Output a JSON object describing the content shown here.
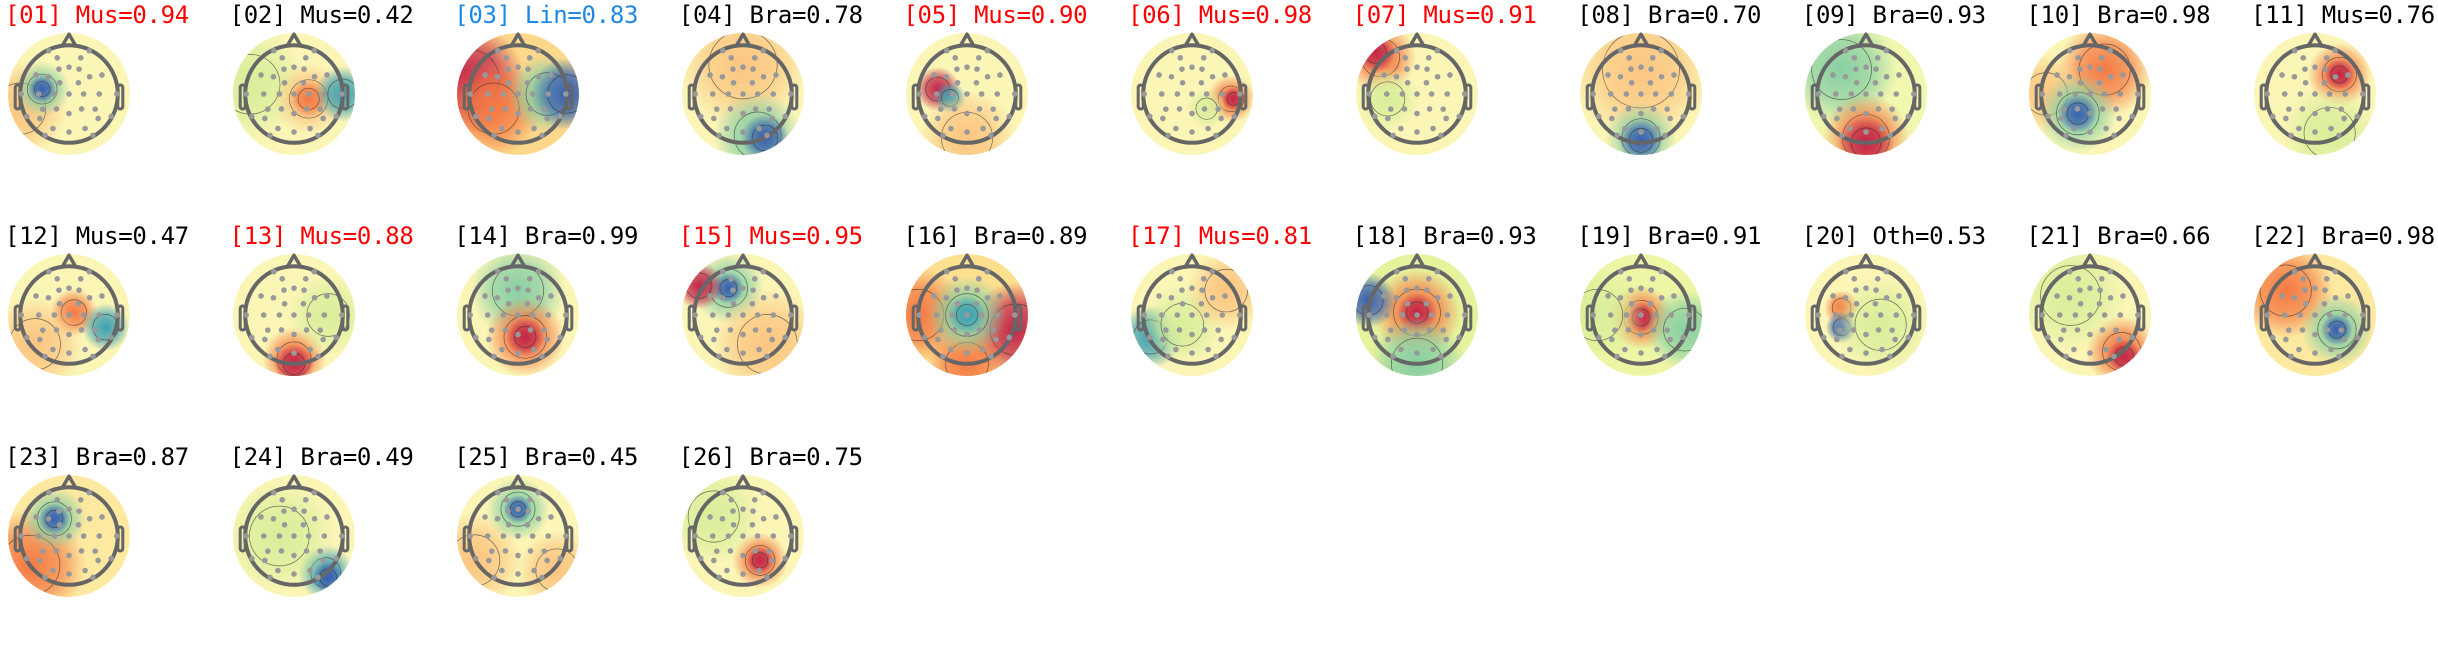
{
  "chart_data": {
    "type": "heatmap",
    "subtype": "topomap-grid",
    "colormap": "Spectral_r",
    "label_colors": {
      "muscle_high": "#ff0000",
      "line_noise": "#1e88e5",
      "default": "#000000"
    },
    "components": [
      {
        "index": "01",
        "label": "Mus",
        "score": "0.94",
        "color": "#ff0000"
      },
      {
        "index": "02",
        "label": "Mus",
        "score": "0.42",
        "color": "#000000"
      },
      {
        "index": "03",
        "label": "Lin",
        "score": "0.83",
        "color": "#1e88e5"
      },
      {
        "index": "04",
        "label": "Bra",
        "score": "0.78",
        "color": "#000000"
      },
      {
        "index": "05",
        "label": "Mus",
        "score": "0.90",
        "color": "#ff0000"
      },
      {
        "index": "06",
        "label": "Mus",
        "score": "0.98",
        "color": "#ff0000"
      },
      {
        "index": "07",
        "label": "Mus",
        "score": "0.91",
        "color": "#ff0000"
      },
      {
        "index": "08",
        "label": "Bra",
        "score": "0.70",
        "color": "#000000"
      },
      {
        "index": "09",
        "label": "Bra",
        "score": "0.93",
        "color": "#000000"
      },
      {
        "index": "10",
        "label": "Bra",
        "score": "0.98",
        "color": "#000000"
      },
      {
        "index": "11",
        "label": "Mus",
        "score": "0.76",
        "color": "#000000"
      },
      {
        "index": "12",
        "label": "Mus",
        "score": "0.47",
        "color": "#000000"
      },
      {
        "index": "13",
        "label": "Mus",
        "score": "0.88",
        "color": "#ff0000"
      },
      {
        "index": "14",
        "label": "Bra",
        "score": "0.99",
        "color": "#000000"
      },
      {
        "index": "15",
        "label": "Mus",
        "score": "0.95",
        "color": "#ff0000"
      },
      {
        "index": "16",
        "label": "Bra",
        "score": "0.89",
        "color": "#000000"
      },
      {
        "index": "17",
        "label": "Mus",
        "score": "0.81",
        "color": "#ff0000"
      },
      {
        "index": "18",
        "label": "Bra",
        "score": "0.93",
        "color": "#000000"
      },
      {
        "index": "19",
        "label": "Bra",
        "score": "0.91",
        "color": "#000000"
      },
      {
        "index": "20",
        "label": "Oth",
        "score": "0.53",
        "color": "#000000"
      },
      {
        "index": "21",
        "label": "Bra",
        "score": "0.66",
        "color": "#000000"
      },
      {
        "index": "22",
        "label": "Bra",
        "score": "0.98",
        "color": "#000000"
      },
      {
        "index": "23",
        "label": "Bra",
        "score": "0.87",
        "color": "#000000"
      },
      {
        "index": "24",
        "label": "Bra",
        "score": "0.49",
        "color": "#000000"
      },
      {
        "index": "25",
        "label": "Bra",
        "score": "0.45",
        "color": "#000000"
      },
      {
        "index": "26",
        "label": "Bra",
        "score": "0.75",
        "color": "#000000"
      }
    ]
  }
}
